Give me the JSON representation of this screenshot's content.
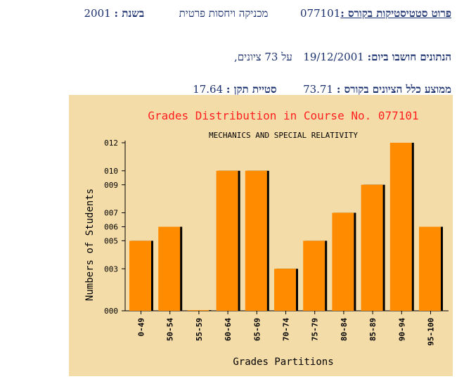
{
  "header": {
    "details_label": "פרוט סטטיסטיקות בקורס :",
    "course_number": "077101",
    "course_name": "מכניקה ויחסות פרטית",
    "year_label": "בשנת :",
    "year": "2001"
  },
  "computed": {
    "label": "הנתונים חושבו ביום:",
    "date": "19/12/2001",
    "count_text": "על 73 ציונים,"
  },
  "stats": {
    "mean_label": "ממוצע כלל הציונים בקורס :",
    "mean": "73.71",
    "std_label": "סטיית תקן :",
    "std": "17.64"
  },
  "chart_data": {
    "type": "bar",
    "title": "Grades Distribution in Course No. 077101",
    "subtitle": "MECHANICS AND SPECIAL RELATIVITY",
    "xlabel": "Grades Partitions",
    "ylabel": "Numbers of Students",
    "categories": [
      "0-49",
      "50-54",
      "55-59",
      "60-64",
      "65-69",
      "70-74",
      "75-79",
      "80-84",
      "85-89",
      "90-94",
      "95-100"
    ],
    "values": [
      5,
      6,
      0,
      10,
      10,
      3,
      5,
      7,
      9,
      12,
      6
    ],
    "yticks": [
      "000",
      "003",
      "005",
      "006",
      "007",
      "009",
      "010",
      "012"
    ],
    "ytick_values": [
      0,
      3,
      5,
      6,
      7,
      9,
      10,
      12
    ],
    "ylim": [
      0,
      12
    ],
    "colors": {
      "bar": "#ff8c00",
      "shadow": "#000000",
      "background": "#f4dca8",
      "title": "#ff2020",
      "text": "#000000"
    }
  }
}
